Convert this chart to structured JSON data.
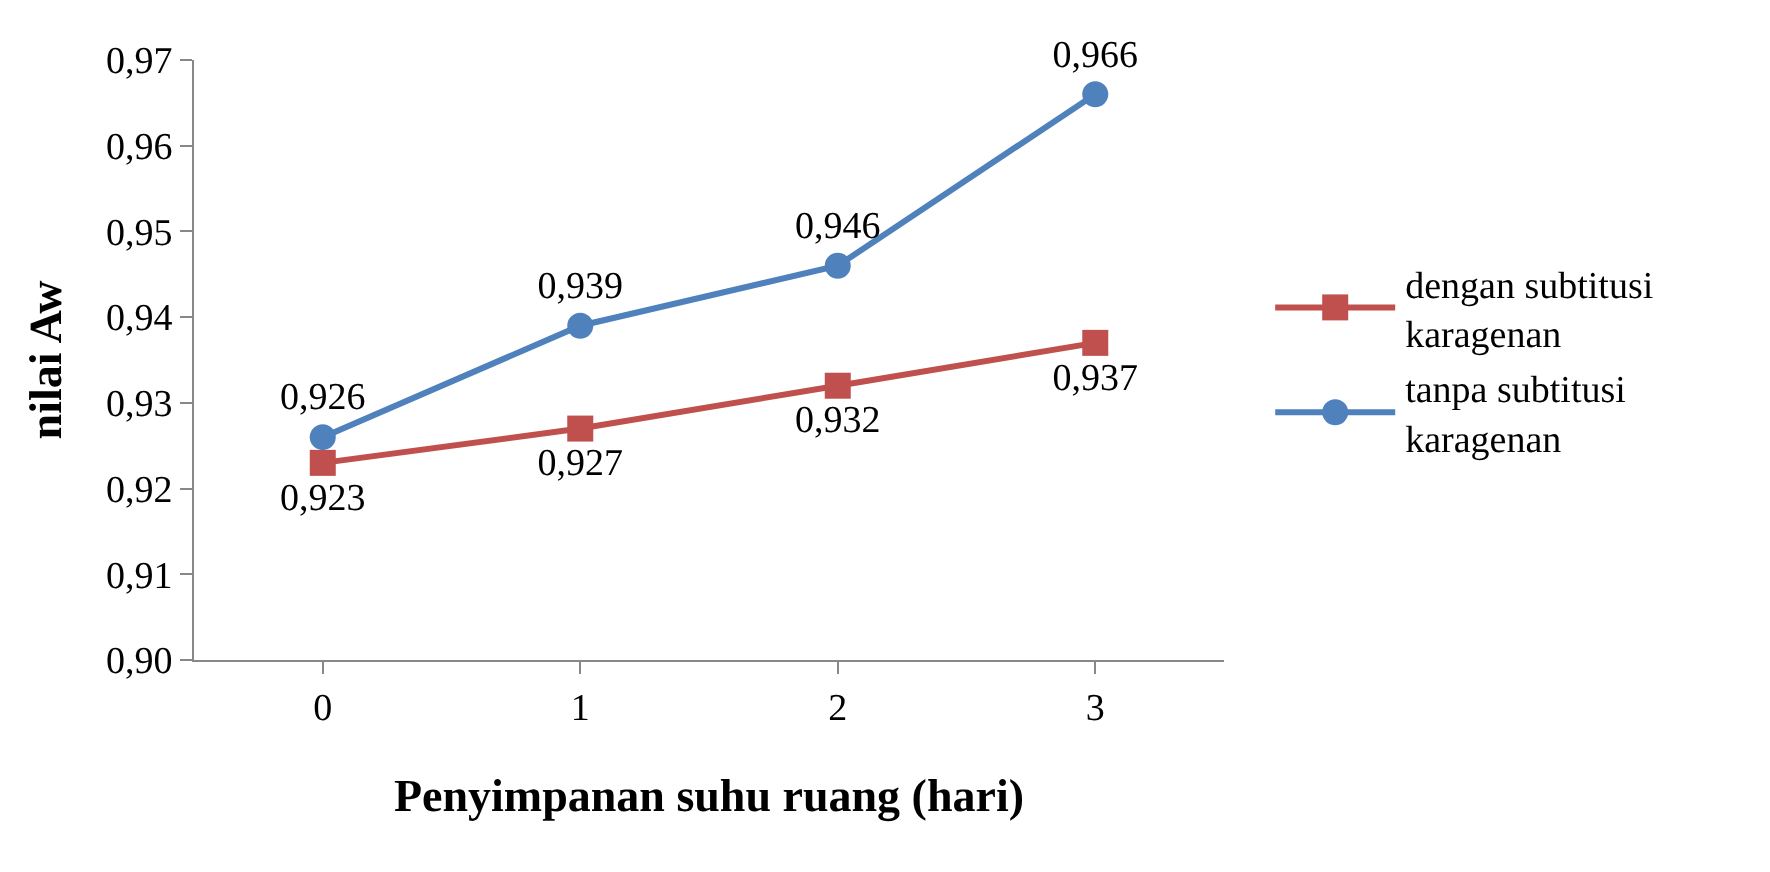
{
  "chart_data": {
    "type": "line",
    "xlabel": "Penyimpanan suhu ruang (hari)",
    "ylabel": "nilai Aw",
    "categories": [
      "0",
      "1",
      "2",
      "3"
    ],
    "series": [
      {
        "name": "dengan subtitusi karagenan",
        "color": "#c0504d",
        "marker": "square",
        "values": [
          0.923,
          0.927,
          0.932,
          0.937
        ],
        "value_labels": [
          "0,923",
          "0,927",
          "0,932",
          "0,937"
        ]
      },
      {
        "name": "tanpa subtitusi karagenan",
        "color": "#4f81bd",
        "marker": "circle",
        "values": [
          0.926,
          0.939,
          0.946,
          0.966
        ],
        "value_labels": [
          "0,926",
          "0,939",
          "0,946",
          "0,966"
        ]
      }
    ],
    "ylim": [
      0.9,
      0.97
    ],
    "yticks": [
      {
        "value": 0.9,
        "label": "0,90"
      },
      {
        "value": 0.91,
        "label": "0,91"
      },
      {
        "value": 0.92,
        "label": "0,92"
      },
      {
        "value": 0.93,
        "label": "0,93"
      },
      {
        "value": 0.94,
        "label": "0,94"
      },
      {
        "value": 0.95,
        "label": "0,95"
      },
      {
        "value": 0.96,
        "label": "0,96"
      },
      {
        "value": 0.97,
        "label": "0,97"
      }
    ],
    "legend": "right",
    "line_style": "solid"
  }
}
